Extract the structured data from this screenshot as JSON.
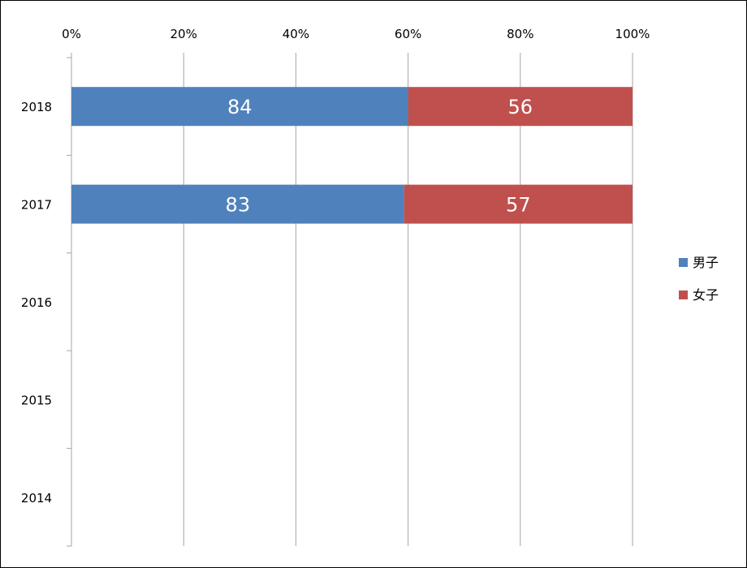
{
  "chart_data": {
    "type": "bar",
    "orientation": "horizontal",
    "stacking": "percent",
    "categories": [
      "2018",
      "2017",
      "2016",
      "2015",
      "2014"
    ],
    "series": [
      {
        "name": "男子",
        "values": [
          84,
          83,
          null,
          null,
          null
        ],
        "color": "#4F81BD"
      },
      {
        "name": "女子",
        "values": [
          56,
          57,
          null,
          null,
          null
        ],
        "color": "#C0504D"
      }
    ],
    "x_ticks": [
      "0%",
      "20%",
      "40%",
      "60%",
      "80%",
      "100%"
    ],
    "xlim": [
      0,
      100
    ],
    "x_axis_position": "top",
    "grid": {
      "vertical": true,
      "color": "#A6A6A6"
    },
    "legend": "right",
    "title": "",
    "xlabel": "",
    "ylabel": ""
  }
}
